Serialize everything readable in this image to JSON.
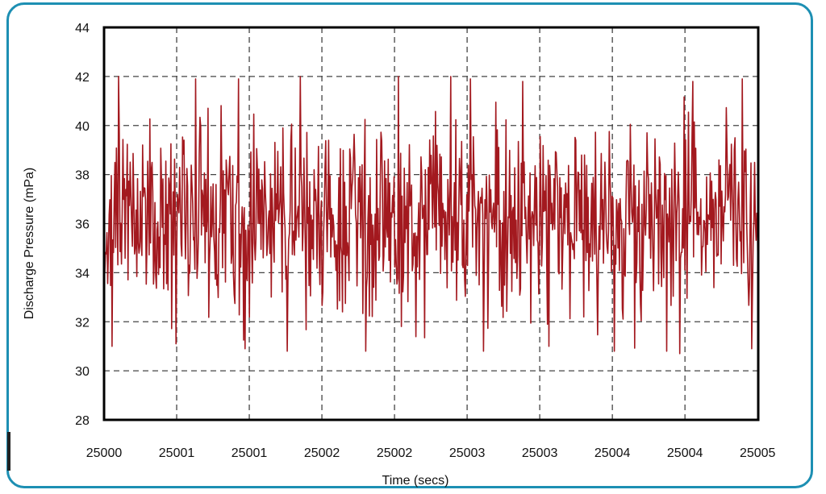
{
  "colors": {
    "frame": "#1d8fb3",
    "series": "#a3191f",
    "grid": "#444444",
    "axis": "#000000"
  },
  "chart_data": {
    "type": "line",
    "title": "",
    "xlabel": "Time (secs)",
    "ylabel": "Discharge Pressure (mPa)",
    "xlim": [
      25000.0,
      25005.0
    ],
    "ylim": [
      28,
      44
    ],
    "x_ticks": [
      25000.0,
      25000.555,
      25001.11,
      25001.665,
      25002.22,
      25002.775,
      25003.33,
      25003.885,
      25004.44,
      25004.995
    ],
    "x_tick_labels": [
      "25000",
      "25001",
      "25001",
      "25002",
      "25002",
      "25003",
      "25003",
      "25004",
      "25004",
      "25005"
    ],
    "y_ticks": [
      28,
      30,
      32,
      34,
      36,
      38,
      40,
      42,
      44
    ],
    "y_tick_labels": [
      "28",
      "30",
      "32",
      "34",
      "36",
      "38",
      "40",
      "42",
      "44"
    ],
    "grid": true,
    "legend": "none",
    "series": [
      {
        "start": 25000.0,
        "end": 25005.0,
        "mean": 36.2,
        "approx_min": 30.8,
        "approx_max": 42.1,
        "peaks": [
          [
            25000.11,
            42.0
          ],
          [
            25000.55,
            42.0
          ],
          [
            25000.7,
            41.9
          ],
          [
            25001.03,
            41.9
          ],
          [
            25001.5,
            42.0
          ],
          [
            25002.25,
            42.0
          ],
          [
            25002.65,
            42.0
          ],
          [
            25002.8,
            41.9
          ],
          [
            25003.2,
            41.8
          ],
          [
            25004.5,
            41.8
          ],
          [
            25004.88,
            41.9
          ],
          [
            25004.95,
            42.0
          ]
        ],
        "troughs": [
          [
            25000.06,
            31.0
          ],
          [
            25000.55,
            31.1
          ],
          [
            25001.08,
            30.9
          ],
          [
            25001.4,
            30.8
          ],
          [
            25002.0,
            30.8
          ],
          [
            25002.0,
            30.8
          ],
          [
            25002.9,
            30.8
          ],
          [
            25003.4,
            31.0
          ],
          [
            25003.9,
            30.8
          ],
          [
            25004.3,
            30.8
          ],
          [
            25004.4,
            30.7
          ],
          [
            25004.95,
            30.9
          ]
        ]
      }
    ]
  }
}
